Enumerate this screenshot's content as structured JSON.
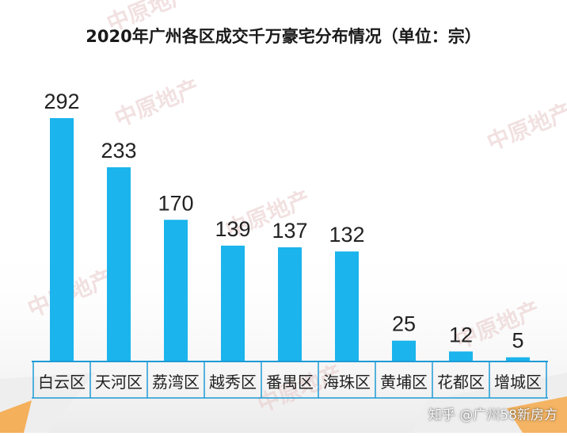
{
  "title": "2020年广州各区成交千万豪宅分布情况（单位：宗）",
  "watermark_text": "中原地产",
  "credit": "知乎 @广州58新房方",
  "colors": {
    "bar": "#1bb4ec",
    "axis": "#1d9bd6",
    "value_label": "#222222",
    "category_label": "#222222",
    "shadow": "#eeeeee",
    "accent_orange": "#f5a540",
    "watermark": "#e8c8c8"
  },
  "chart_data": {
    "type": "bar",
    "title": "2020年广州各区成交千万豪宅分布情况（单位：宗）",
    "categories": [
      "白云区",
      "天河区",
      "荔湾区",
      "越秀区",
      "番禺区",
      "海珠区",
      "黄埔区",
      "花都区",
      "增城区"
    ],
    "values": [
      292,
      233,
      170,
      139,
      137,
      132,
      25,
      12,
      5
    ],
    "unit": "宗",
    "ylim": [
      0,
      292
    ],
    "grid": false,
    "legend": "none",
    "data_labels": true
  }
}
